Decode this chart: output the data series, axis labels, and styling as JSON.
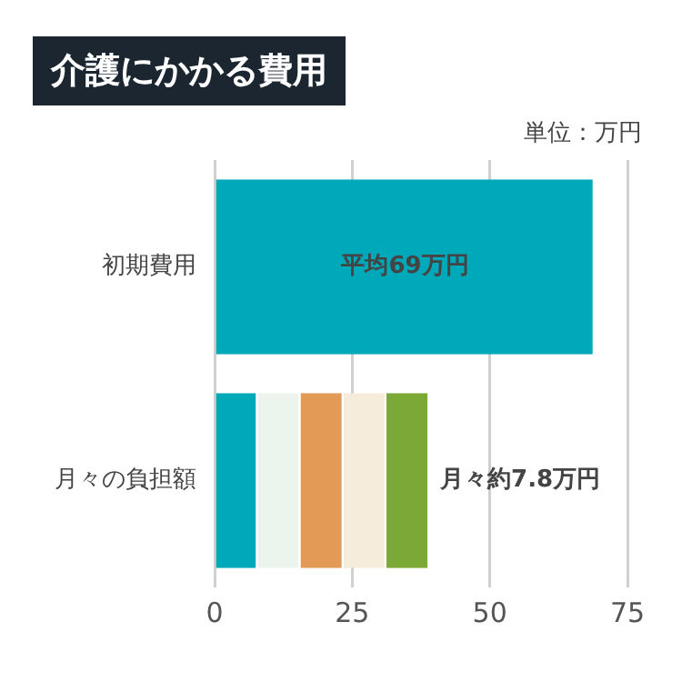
{
  "chart_data": {
    "type": "bar",
    "orientation": "horizontal",
    "stacked": true,
    "title": "介護にかかる費用",
    "categories": [
      "初期費用",
      "月々の負担額"
    ],
    "series": [
      {
        "color": "#00a9b9",
        "values": [
          69,
          7.8
        ],
        "value_labels": [
          "平均69万円",
          null
        ]
      },
      {
        "color": "#ebf5ee",
        "values": [
          null,
          7.8
        ]
      },
      {
        "color": "#e39a57",
        "values": [
          null,
          7.8
        ]
      },
      {
        "color": "#f6ecdc",
        "values": [
          null,
          7.8
        ]
      },
      {
        "color": "#7aaa35",
        "values": [
          null,
          7.8
        ],
        "value_labels": [
          null,
          "月々約7.8万円"
        ]
      }
    ],
    "xlim": [
      0,
      75
    ],
    "xticks": [
      0,
      25,
      50,
      75
    ],
    "grid": "x",
    "legend": false,
    "annotations": [
      "単位：万円"
    ]
  }
}
